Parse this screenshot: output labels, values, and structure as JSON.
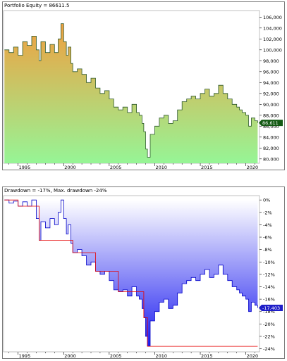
{
  "equity": {
    "title": "Portfolio Equity = 86611.5",
    "last_value_label": "86,611",
    "chart_data": {
      "type": "area",
      "title": "Portfolio Equity = 86611.5",
      "xlabel": "",
      "ylabel": "",
      "xlim": [
        1993.4,
        2021.5
      ],
      "ylim": [
        79.2,
        107.2
      ],
      "x_ticks": [
        1995,
        2000,
        2005,
        2010,
        2015,
        2020
      ],
      "x_tick_labels": [
        "1995",
        "2000",
        "2005",
        "2010",
        "2015",
        "2020"
      ],
      "y_ticks": [
        80,
        82,
        84,
        86,
        88,
        90,
        92,
        94,
        96,
        98,
        100,
        102,
        104,
        106
      ],
      "y_tick_labels": [
        "80,000",
        "82,000",
        "84,000",
        "86,000",
        "88,000",
        "90,000",
        "92,000",
        "94,000",
        "96,000",
        "98,000",
        "100,000",
        "102,000",
        "104,000",
        "106,000"
      ],
      "grid": false,
      "series": [
        {
          "x": [
            1993.5,
            1994.0,
            1994.5,
            1995.0,
            1995.5,
            1996.0,
            1996.5,
            1997.0,
            1997.3,
            1997.5,
            1998.0,
            1998.5,
            1999.0,
            1999.4,
            1999.7,
            2000.0,
            2000.3,
            2000.5,
            2000.8,
            2001.0,
            2001.5,
            2002.0,
            2002.5,
            2003.0,
            2003.5,
            2004.0,
            2004.5,
            2005.0,
            2005.5,
            2006.0,
            2006.5,
            2007.0,
            2007.5,
            2008.0,
            2008.3,
            2008.6,
            2008.8,
            2009.0,
            2009.2,
            2009.5,
            2010.0,
            2010.5,
            2011.0,
            2011.5,
            2012.0,
            2012.5,
            2013.0,
            2013.5,
            2014.0,
            2014.5,
            2015.0,
            2015.5,
            2016.0,
            2016.5,
            2017.0,
            2017.5,
            2018.0,
            2018.5,
            2019.0,
            2019.3,
            2019.6,
            2020.0,
            2020.3,
            2020.6,
            2021.0,
            2021.3
          ],
          "values": [
            100.0,
            99.5,
            100.5,
            99.0,
            101.5,
            100.8,
            102.5,
            100.0,
            98.0,
            101.5,
            99.5,
            101.0,
            99.5,
            102.0,
            104.8,
            101.5,
            99.0,
            100.5,
            97.5,
            96.0,
            96.5,
            95.5,
            94.0,
            94.8,
            93.0,
            92.0,
            92.5,
            91.0,
            89.5,
            89.0,
            89.5,
            88.5,
            90.0,
            88.5,
            88.0,
            86.5,
            85.0,
            81.8,
            80.3,
            84.5,
            86.0,
            87.5,
            88.0,
            86.5,
            87.0,
            89.0,
            90.5,
            91.0,
            91.5,
            91.0,
            92.0,
            92.8,
            91.5,
            92.0,
            93.5,
            92.0,
            91.0,
            90.0,
            89.5,
            89.0,
            88.5,
            88.0,
            86.0,
            87.5,
            87.0,
            86.6
          ]
        }
      ],
      "colors": {
        "top": "#f0a040",
        "bottom": "#96f596",
        "line": "#2e5a2e",
        "badge": "#145a14"
      }
    }
  },
  "drawdown": {
    "title": "Drawdown = -17%, Max. drawdown -24%",
    "last_value_label": "-17.403",
    "chart_data": {
      "type": "area",
      "title": "Drawdown = -17%, Max. drawdown -24%",
      "xlabel": "",
      "ylabel": "",
      "xlim": [
        1993.4,
        2021.5
      ],
      "ylim": [
        -24.5,
        0.7
      ],
      "x_ticks": [
        1995,
        2000,
        2005,
        2010,
        2015,
        2020
      ],
      "x_tick_labels": [
        "1995",
        "2000",
        "2005",
        "2010",
        "2015",
        "2020"
      ],
      "y_ticks": [
        0,
        -2,
        -4,
        -6,
        -8,
        -10,
        -12,
        -14,
        -16,
        -18,
        -20,
        -22,
        -24
      ],
      "y_tick_labels": [
        "0%",
        "-2%",
        "-4%",
        "-6%",
        "-8%",
        "-10%",
        "-12%",
        "-14%",
        "-16%",
        "-18%",
        "-20%",
        "-22%",
        "-24%"
      ],
      "grid": false,
      "series": [
        {
          "name": "Drawdown",
          "x": [
            1993.5,
            1994.0,
            1994.5,
            1995.0,
            1995.5,
            1996.0,
            1996.5,
            1997.0,
            1997.3,
            1997.5,
            1998.0,
            1998.5,
            1999.0,
            1999.4,
            1999.7,
            2000.0,
            2000.3,
            2000.5,
            2000.8,
            2001.0,
            2001.5,
            2002.0,
            2002.5,
            2003.0,
            2003.5,
            2004.0,
            2004.5,
            2005.0,
            2005.5,
            2006.0,
            2006.5,
            2007.0,
            2007.5,
            2008.0,
            2008.3,
            2008.6,
            2008.8,
            2009.0,
            2009.2,
            2009.5,
            2010.0,
            2010.5,
            2011.0,
            2011.5,
            2012.0,
            2012.5,
            2013.0,
            2013.5,
            2014.0,
            2014.5,
            2015.0,
            2015.5,
            2016.0,
            2016.5,
            2017.0,
            2017.5,
            2018.0,
            2018.5,
            2019.0,
            2019.3,
            2019.6,
            2020.0,
            2020.3,
            2020.6,
            2021.0,
            2021.3
          ],
          "values": [
            0.0,
            -0.5,
            -0.2,
            -1.0,
            -0.3,
            -1.0,
            0.0,
            -3.0,
            -6.5,
            -3.5,
            -4.5,
            -3.0,
            -4.0,
            -2.0,
            0.0,
            -3.0,
            -5.5,
            -4.0,
            -7.0,
            -8.5,
            -8.0,
            -9.0,
            -10.5,
            -10.0,
            -11.5,
            -12.0,
            -11.5,
            -13.0,
            -14.5,
            -14.8,
            -14.5,
            -15.5,
            -14.0,
            -15.5,
            -16.0,
            -17.5,
            -19.0,
            -22.0,
            -23.6,
            -19.5,
            -18.0,
            -16.5,
            -16.0,
            -17.5,
            -17.0,
            -15.0,
            -13.5,
            -13.0,
            -12.5,
            -13.0,
            -12.0,
            -11.2,
            -12.5,
            -12.0,
            -10.5,
            -12.0,
            -13.0,
            -14.0,
            -14.5,
            -15.0,
            -15.5,
            -16.0,
            -18.0,
            -16.5,
            -17.0,
            -17.4
          ]
        },
        {
          "name": "Max drawdown",
          "x": [
            1993.5,
            1995.0,
            1995.0,
            1997.3,
            1997.3,
            2001.0,
            2001.0,
            2003.5,
            2003.5,
            2006.0,
            2006.0,
            2008.8,
            2008.8,
            2009.2,
            2009.2,
            2021.3
          ],
          "values": [
            0.0,
            0.0,
            -1.0,
            -1.0,
            -6.5,
            -6.5,
            -8.5,
            -8.5,
            -11.5,
            -11.5,
            -14.8,
            -14.8,
            -19.0,
            -19.0,
            -23.6,
            -23.6
          ]
        }
      ],
      "colors": {
        "top": "#ffffff",
        "bottom": "#1e1ef0",
        "line": "#0000c8",
        "maxline": "#e60000",
        "badge": "#1e1ec8"
      }
    }
  }
}
